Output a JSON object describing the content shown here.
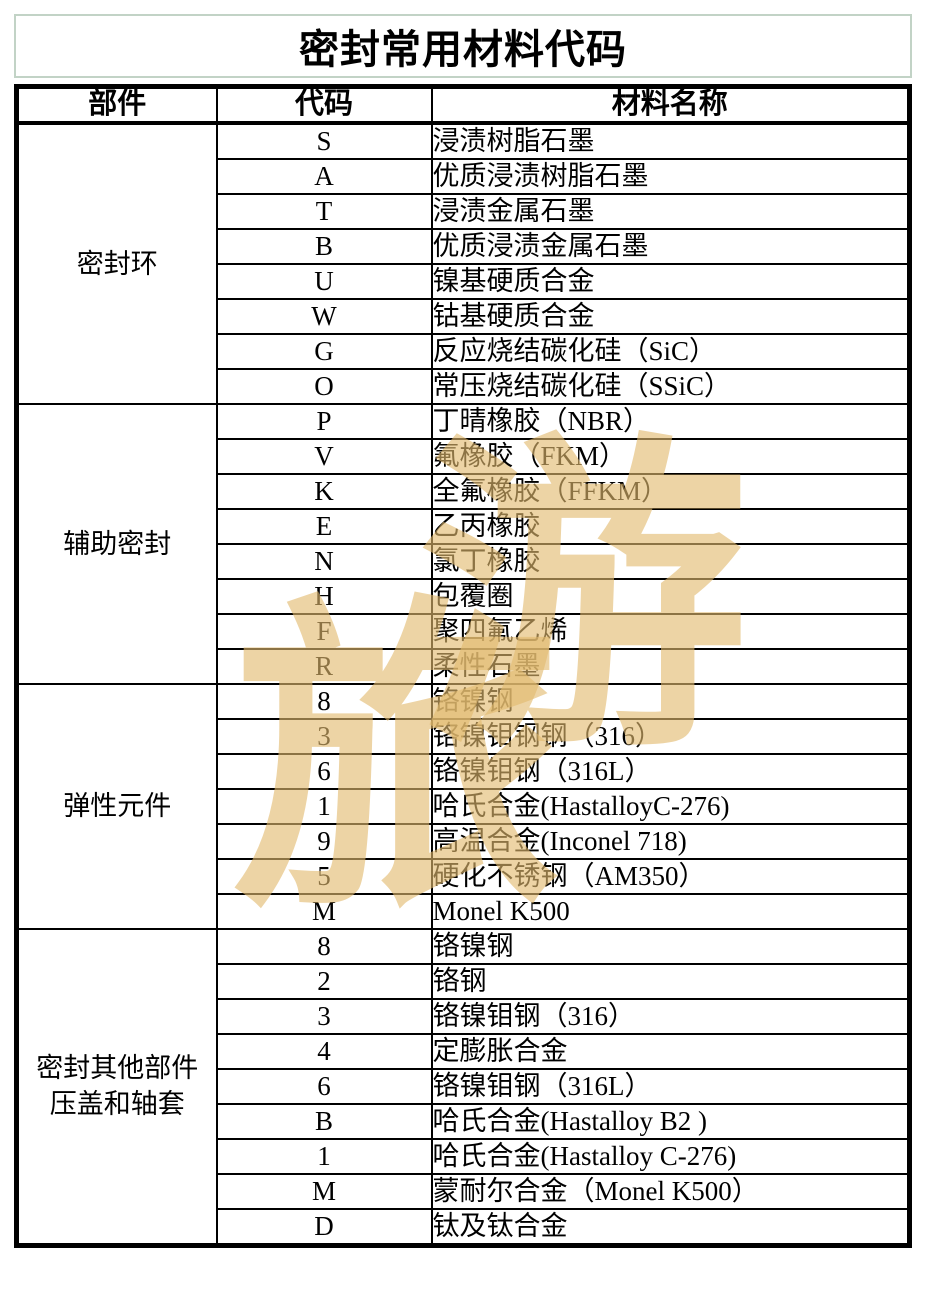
{
  "title": "密封常用材料代码",
  "watermark": {
    "chars": [
      "旅",
      "游"
    ],
    "color": "#eed3a4"
  },
  "colors": {
    "table_border": "#000000",
    "title_border": "#c2d3c6",
    "watermark_apparent": "#eed3a4"
  },
  "table": {
    "headers": {
      "part": "部件",
      "code": "代码",
      "material": "材料名称"
    },
    "sections": [
      {
        "part": "密封环",
        "part_lines": [
          "密封环"
        ],
        "rows": [
          {
            "code": "S",
            "material": "浸渍树脂石墨"
          },
          {
            "code": "A",
            "material": "优质浸渍树脂石墨"
          },
          {
            "code": "T",
            "material": "浸渍金属石墨"
          },
          {
            "code": "B",
            "material": "优质浸渍金属石墨"
          },
          {
            "code": "U",
            "material": "镍基硬质合金"
          },
          {
            "code": "W",
            "material": "钴基硬质合金"
          },
          {
            "code": "G",
            "material": "反应烧结碳化硅（SiC）"
          },
          {
            "code": "O",
            "material": "常压烧结碳化硅（SSiC）"
          }
        ]
      },
      {
        "part": "辅助密封",
        "part_lines": [
          "辅助密封"
        ],
        "rows": [
          {
            "code": "P",
            "material": "丁晴橡胶（NBR）"
          },
          {
            "code": "V",
            "material": "氟橡胶（FKM）"
          },
          {
            "code": "K",
            "material": "全氟橡胶（FFKM）"
          },
          {
            "code": "E",
            "material": "乙丙橡胶"
          },
          {
            "code": "N",
            "material": "氯丁橡胶"
          },
          {
            "code": "H",
            "material": "包覆圈"
          },
          {
            "code": "F",
            "material": "聚四氟乙烯"
          },
          {
            "code": "R",
            "material": "柔性石墨"
          }
        ]
      },
      {
        "part": "弹性元件",
        "part_lines": [
          "弹性元件"
        ],
        "rows": [
          {
            "code": "8",
            "material": "铬镍钢"
          },
          {
            "code": "3",
            "material": "铬镍钼钢钢（316）"
          },
          {
            "code": "6",
            "material": "铬镍钼钢（316L）"
          },
          {
            "code": "1",
            "material": "哈氏合金(HastalloyC-276)"
          },
          {
            "code": "9",
            "material": "高温合金(Inconel 718)"
          },
          {
            "code": "5",
            "material": "硬化不锈钢（AM350）"
          },
          {
            "code": "M",
            "material": "Monel K500"
          }
        ]
      },
      {
        "part": "密封其他部件压盖和轴套",
        "part_lines": [
          "密封其他部件",
          "压盖和轴套"
        ],
        "rows": [
          {
            "code": "8",
            "material": "铬镍钢"
          },
          {
            "code": "2",
            "material": "铬钢"
          },
          {
            "code": "3",
            "material": "铬镍钼钢（316）"
          },
          {
            "code": "4",
            "material": "定膨胀合金"
          },
          {
            "code": "6",
            "material": "铬镍钼钢（316L）"
          },
          {
            "code": "B",
            "material": "哈氏合金(Hastalloy B2 )"
          },
          {
            "code": "1",
            "material": "哈氏合金(Hastalloy C-276)"
          },
          {
            "code": "M",
            "material": "蒙耐尔合金（Monel K500）"
          },
          {
            "code": "D",
            "material": "钛及钛合金"
          }
        ]
      }
    ]
  }
}
